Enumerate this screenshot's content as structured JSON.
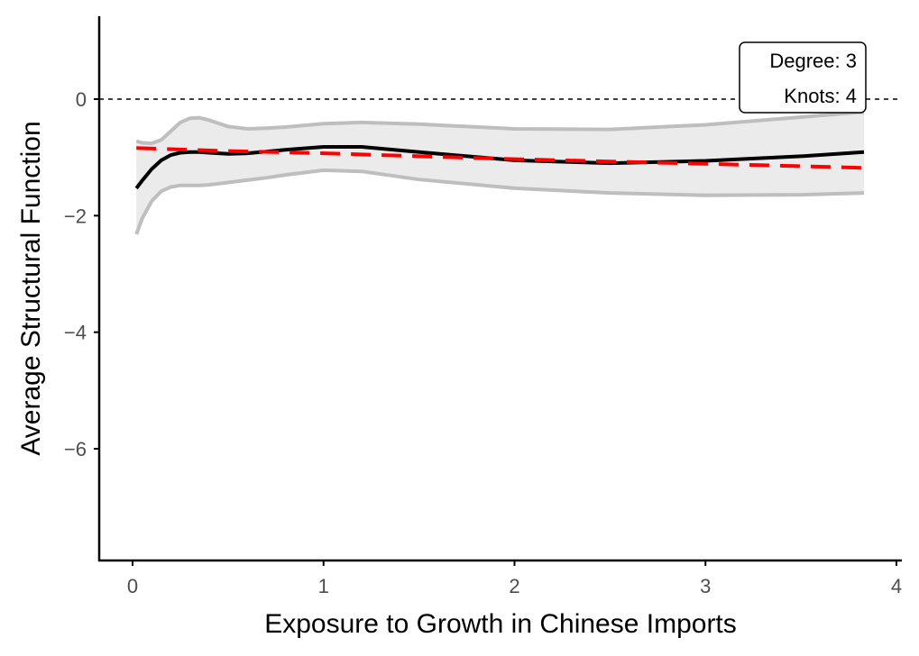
{
  "chart_data": {
    "type": "line",
    "xlabel": "Exposure to Growth in Chinese Imports",
    "ylabel": "Average Structural Function",
    "xlim": [
      -0.18,
      4.04
    ],
    "ylim": [
      -7.8,
      1.4
    ],
    "x_ticks": [
      0,
      1,
      2,
      3,
      4
    ],
    "x_tick_labels": [
      "0",
      "1",
      "2",
      "3",
      "4"
    ],
    "y_ticks": [
      0,
      -2,
      -4,
      -6
    ],
    "y_tick_labels": [
      "0",
      "−2",
      "−4",
      "−6"
    ],
    "grid": false,
    "reference_line": {
      "y": 0,
      "style": "dashed",
      "color": "#000000"
    },
    "annotation": {
      "lines": [
        "Degree: 3",
        "Knots: 4"
      ],
      "placement": "top-right"
    },
    "band": {
      "fill": "#ebebeb",
      "edge_color": "#bebebe",
      "x": [
        0.02,
        0.05,
        0.1,
        0.15,
        0.2,
        0.25,
        0.3,
        0.35,
        0.4,
        0.5,
        0.6,
        0.7,
        0.8,
        1.0,
        1.2,
        1.5,
        2.0,
        2.5,
        3.0,
        3.5,
        3.83
      ],
      "upper": [
        -0.72,
        -0.75,
        -0.76,
        -0.7,
        -0.55,
        -0.4,
        -0.33,
        -0.32,
        -0.36,
        -0.47,
        -0.51,
        -0.5,
        -0.48,
        -0.42,
        -0.4,
        -0.43,
        -0.51,
        -0.52,
        -0.44,
        -0.31,
        -0.22
      ],
      "lower": [
        -2.32,
        -2.05,
        -1.75,
        -1.58,
        -1.51,
        -1.48,
        -1.48,
        -1.48,
        -1.47,
        -1.43,
        -1.39,
        -1.35,
        -1.3,
        -1.22,
        -1.24,
        -1.38,
        -1.53,
        -1.61,
        -1.65,
        -1.64,
        -1.61
      ]
    },
    "series": [
      {
        "color": "#000000",
        "style": "solid",
        "x": [
          0.02,
          0.05,
          0.1,
          0.15,
          0.2,
          0.25,
          0.3,
          0.35,
          0.4,
          0.5,
          0.6,
          0.7,
          0.8,
          1.0,
          1.2,
          1.5,
          2.0,
          2.5,
          3.0,
          3.5,
          3.83
        ],
        "values": [
          -1.53,
          -1.4,
          -1.2,
          -1.05,
          -0.96,
          -0.92,
          -0.91,
          -0.91,
          -0.92,
          -0.94,
          -0.93,
          -0.9,
          -0.87,
          -0.82,
          -0.82,
          -0.91,
          -1.05,
          -1.1,
          -1.06,
          -0.98,
          -0.91
        ]
      },
      {
        "color": "#ff0000",
        "style": "dashed",
        "x": [
          0.02,
          0.5,
          1.0,
          1.5,
          2.0,
          2.5,
          3.0,
          3.5,
          3.83
        ],
        "values": [
          -0.84,
          -0.89,
          -0.93,
          -0.98,
          -1.03,
          -1.07,
          -1.11,
          -1.15,
          -1.18
        ]
      }
    ]
  }
}
